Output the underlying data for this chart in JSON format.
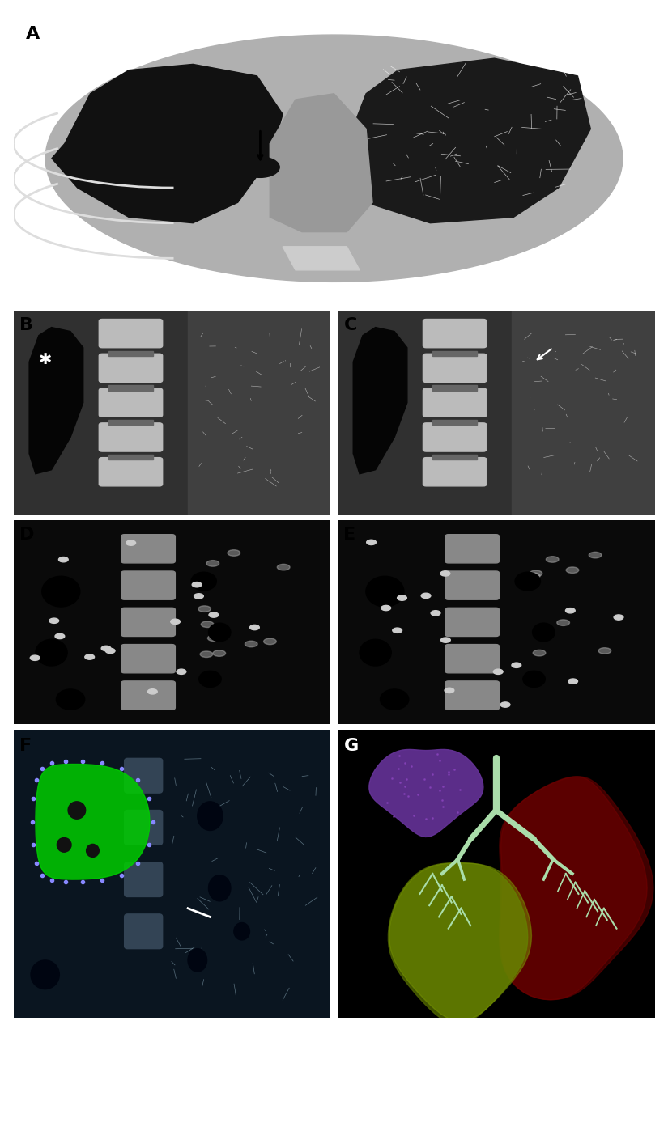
{
  "bg_color": "#ffffff",
  "panel_labels": [
    "A",
    "B",
    "C",
    "D",
    "E",
    "F",
    "G"
  ],
  "label_color": "black",
  "label_fontsize": 16,
  "label_fontweight": "bold",
  "figure_width": 8.25,
  "figure_height": 13.98,
  "dpi": 100,
  "outer_bg": "#cccccc",
  "panel_A": {
    "bg": "#888888",
    "ct_bg": "#aaaaaa",
    "label": "A"
  },
  "panel_B": {
    "label": "B"
  },
  "panel_C": {
    "label": "C"
  },
  "panel_D": {
    "label": "D"
  },
  "panel_E": {
    "label": "E"
  },
  "panel_F": {
    "label": "F",
    "green_color": "#00cc00",
    "dot_color": "#8888ff"
  },
  "panel_G": {
    "label": "G",
    "purple_color": "#9966cc",
    "yellow_color": "#aacc00",
    "red_color": "#cc2222",
    "trachea_color": "#aaddaa",
    "bg_color": "#000000"
  }
}
